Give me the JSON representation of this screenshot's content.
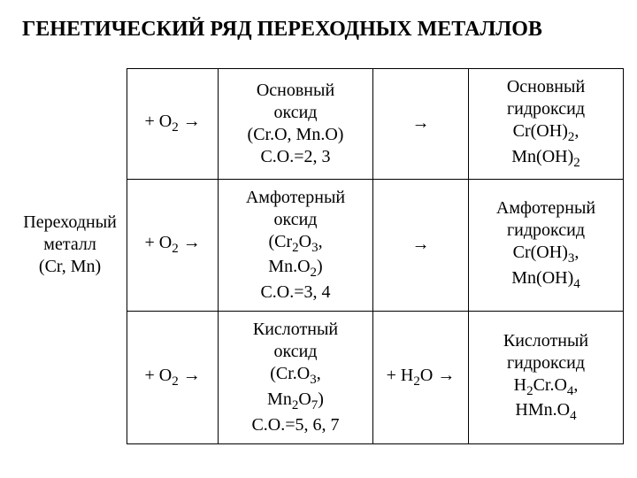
{
  "title": "ГЕНЕТИЧЕСКИЙ РЯД ПЕРЕХОДНЫХ МЕТАЛЛОВ",
  "col1_metal_l1": "Переходный",
  "col1_metal_l2": "металл",
  "col1_metal_l3": "(Cr, Mn)",
  "r1c2": "+ O₂ →",
  "r1c3_l1": "Основный",
  "r1c3_l2": "оксид",
  "r1c3_l3": "(Cr.O, Mn.O)",
  "r1c3_l4": "С.О.=2, 3",
  "r1c4": "→",
  "r1c5_l1": "Основный",
  "r1c5_l2": "гидроксид",
  "r1c5_l3": "Cr(OH)₂,",
  "r1c5_l4": "Mn(OH)₂",
  "r2c2": "+ O₂ →",
  "r2c3_l1": "Амфотерный",
  "r2c3_l2": "оксид",
  "r2c3_l3": "(Cr₂O₃,",
  "r2c3_l4": "Mn.O₂)",
  "r2c3_l5": "С.О.=3, 4",
  "r2c4": "→",
  "r2c5_l1": "Амфотерный",
  "r2c5_l2": "гидроксид",
  "r2c5_l3": "Cr(OH)₃,",
  "r2c5_l4": "Mn(OH)₄",
  "r3c2": "+ O₂ →",
  "r3c3_l1": "Кислотный",
  "r3c3_l2": "оксид",
  "r3c3_l3": "(Cr.O₃,",
  "r3c3_l4": "Mn₂O₇)",
  "r3c3_l5": "С.О.=5, 6, 7",
  "r3c4": "+ H₂O →",
  "r3c5_l1": "Кислотный",
  "r3c5_l2": "гидроксид",
  "r3c5_l3": "H₂Cr.O₄,",
  "r3c5_l4": "HMn.O₄"
}
